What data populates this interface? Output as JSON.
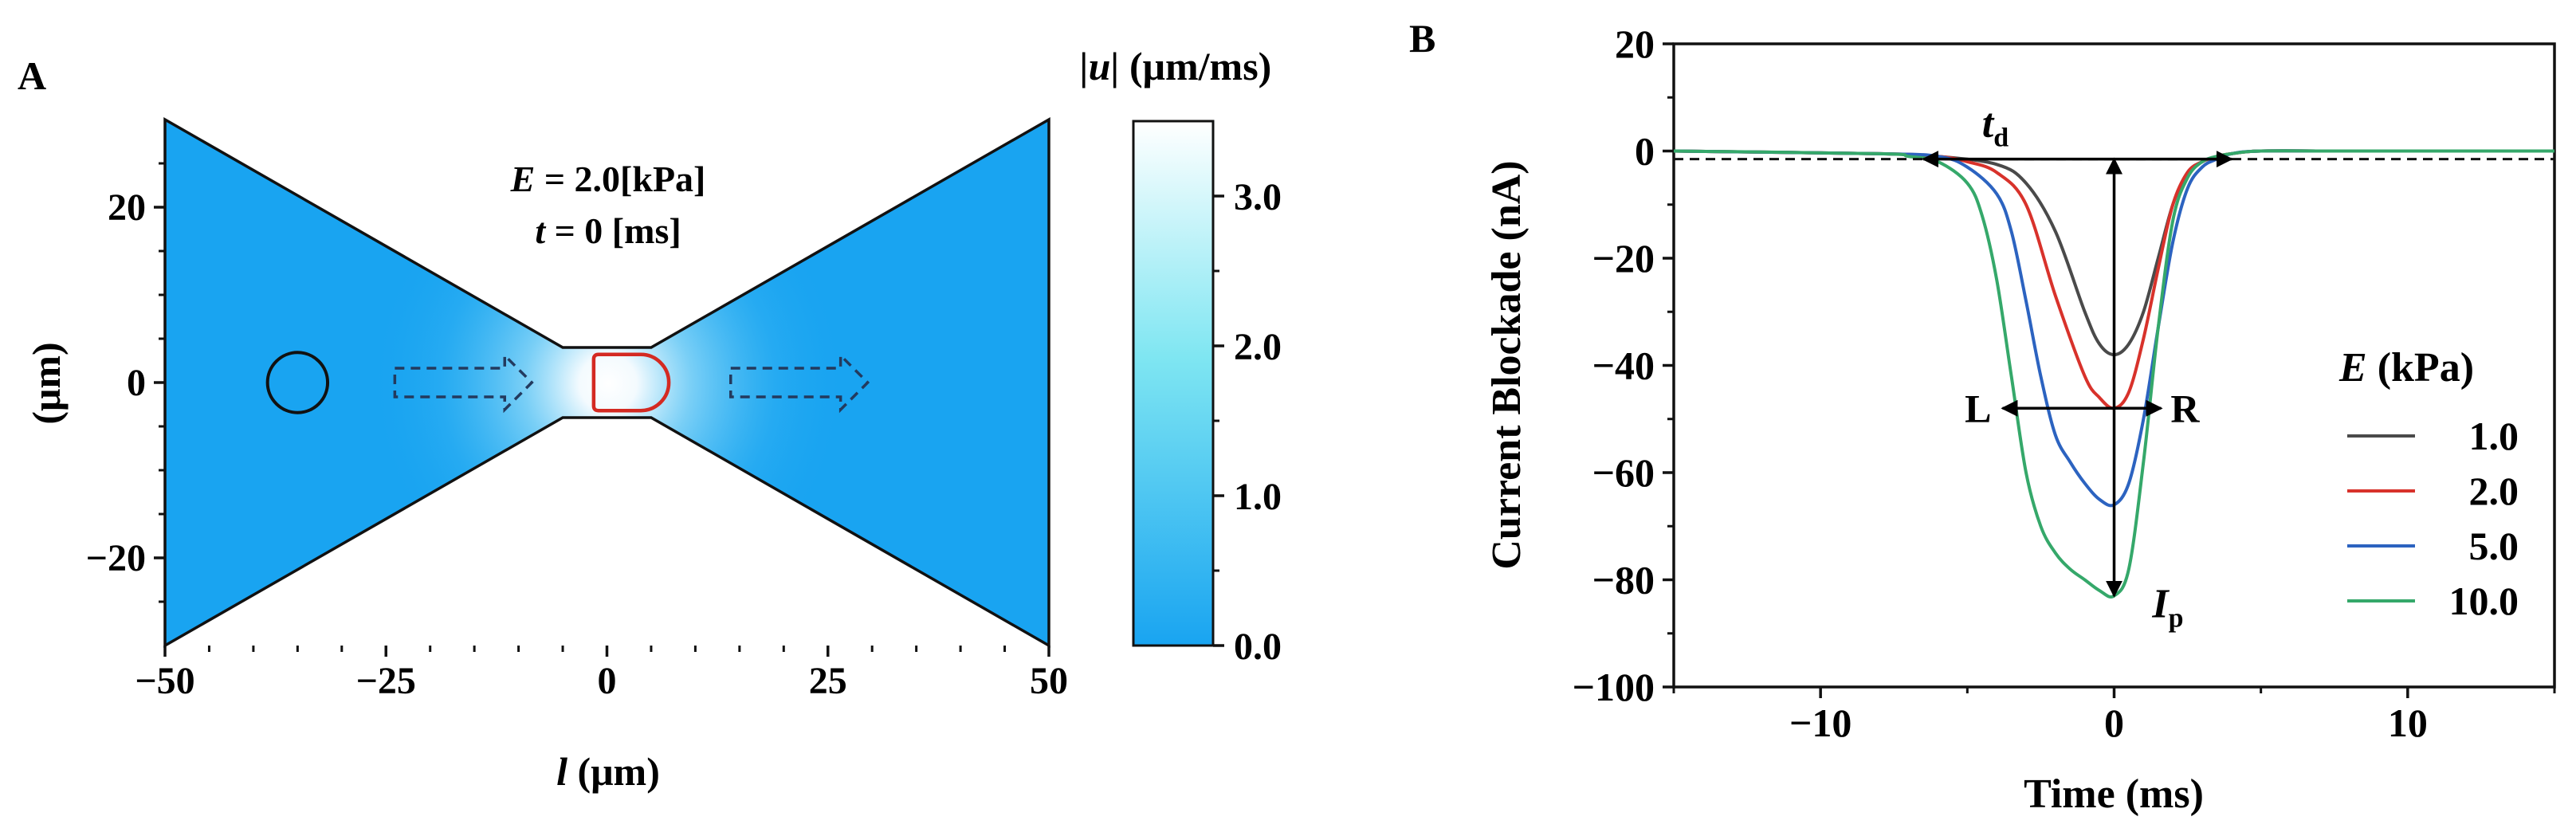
{
  "panels": {
    "a": {
      "label": "A"
    },
    "b": {
      "label": "B"
    }
  },
  "chart_data": [
    {
      "type": "heatmap",
      "panel": "A",
      "annotation": {
        "line1_var": "E",
        "line1_val": " = 2.0[kPa]",
        "line2_var": "t",
        "line2_val": " = 0 [ms]"
      },
      "xlabel": {
        "var": "l",
        "unit": " (μm)"
      },
      "ylabel": "(μm)",
      "xlim": [
        -50,
        50
      ],
      "ylim": [
        -30,
        30
      ],
      "xticks": [
        -50,
        -25,
        0,
        25,
        50
      ],
      "xtick_labels": [
        "−50",
        "−25",
        "0",
        "25",
        "50"
      ],
      "yticks": [
        -20,
        0,
        20
      ],
      "ytick_labels": [
        "−20",
        "0",
        "20"
      ],
      "geometry": {
        "inlet_half_height": 30,
        "pore_half_length": 5,
        "pore_half_height": 4,
        "cell_before": {
          "x": -35,
          "y": 0,
          "r": 3.4
        },
        "cell_in_pore": {
          "x_left": -1.5,
          "x_right": 7,
          "half_height": 3.2
        },
        "flow_arrows": [
          {
            "x0": -24,
            "x1": -8.5
          },
          {
            "x0": 14,
            "x1": 29.5
          }
        ]
      },
      "colorbar": {
        "title_var": "|u|",
        "title_unit": " (μm/ms)",
        "range": [
          0,
          3.5
        ],
        "ticks": [
          0,
          1,
          2,
          3
        ],
        "tick_labels": [
          "0.0",
          "1.0",
          "2.0",
          "3.0"
        ],
        "color_low": "#19a4f1",
        "color_mid": "#7fe6f2",
        "color_high": "#ffffff"
      },
      "colors": {
        "field": "#19a4f1",
        "outline": "#111111",
        "cell_deformed": "#d42a22",
        "arrow": "#233a5e"
      }
    },
    {
      "type": "line",
      "panel": "B",
      "xlabel": "Time (ms)",
      "ylabel": "Current  Blockade (nA)",
      "xlim": [
        -15,
        15
      ],
      "ylim": [
        -100,
        20
      ],
      "xticks": [
        -10,
        0,
        10
      ],
      "xtick_labels": [
        "−10",
        "0",
        "10"
      ],
      "yticks": [
        20,
        0,
        -20,
        -40,
        -60,
        -80,
        -100
      ],
      "ytick_labels": [
        "20",
        "0",
        "−20",
        "−40",
        "−60",
        "−80",
        "−100"
      ],
      "baseline": -1.5,
      "legend": {
        "title_var": "E",
        "title_unit": "  (kPa)",
        "placement": "right"
      },
      "series": [
        {
          "name": "1.0",
          "color": "#4a4a4a",
          "x": [
            -15,
            -8,
            -6,
            -4,
            -3,
            -2,
            -1,
            -0.5,
            0,
            0.5,
            1,
            1.5,
            2,
            2.5,
            3,
            3.5,
            4,
            5,
            8,
            15
          ],
          "y": [
            0,
            -0.5,
            -1,
            -2.5,
            -6,
            -15,
            -30,
            -36,
            -38,
            -36,
            -30,
            -20,
            -10,
            -4,
            -2,
            -1,
            -0.5,
            0,
            0,
            0
          ]
        },
        {
          "name": "2.0",
          "color": "#d8322b",
          "x": [
            -15,
            -8,
            -6,
            -5,
            -4,
            -3,
            -2,
            -1,
            -0.5,
            0,
            0.5,
            1,
            1.5,
            2,
            2.5,
            3,
            3.5,
            4,
            5,
            8,
            15
          ],
          "y": [
            0,
            -0.5,
            -1,
            -2,
            -4,
            -10,
            -27,
            -42,
            -46,
            -48,
            -45,
            -35,
            -22,
            -10,
            -4,
            -2,
            -1,
            -0.5,
            0,
            0,
            0
          ]
        },
        {
          "name": "5.0",
          "color": "#2c63c0",
          "x": [
            -15,
            -8,
            -6,
            -5,
            -4,
            -3.5,
            -3,
            -2.5,
            -2,
            -1.5,
            -1,
            -0.5,
            0,
            0.5,
            1,
            1.5,
            2,
            2.5,
            3,
            3.5,
            4,
            5,
            8,
            15
          ],
          "y": [
            0,
            -0.5,
            -1,
            -3,
            -8,
            -15,
            -28,
            -42,
            -53,
            -58,
            -62,
            -65,
            -66,
            -62,
            -50,
            -33,
            -17,
            -7,
            -3,
            -1.5,
            -0.5,
            0,
            0,
            0
          ]
        },
        {
          "name": "10.0",
          "color": "#35a86a",
          "x": [
            -15,
            -8,
            -7,
            -6,
            -5,
            -4.5,
            -4,
            -3.5,
            -3,
            -2.5,
            -2,
            -1.5,
            -1,
            -0.5,
            0,
            0.5,
            1,
            1.5,
            2,
            2.5,
            3,
            3.5,
            4,
            5,
            8,
            15
          ],
          "y": [
            0,
            -0.5,
            -1,
            -2,
            -6,
            -12,
            -24,
            -42,
            -60,
            -70,
            -75,
            -78,
            -80,
            -82,
            -83,
            -78,
            -58,
            -33,
            -13,
            -5,
            -2,
            -1,
            -0.5,
            0,
            0,
            0
          ]
        }
      ],
      "annotations": {
        "td": {
          "var": "t",
          "sub": "d",
          "from": -6.5,
          "to": 4
        },
        "ip": {
          "var": "I",
          "sub": "p",
          "x": 0,
          "from": -1.5,
          "to": -83
        },
        "L_label": "L",
        "R_label": "R",
        "lr_arrow": {
          "y": -48,
          "from": -3.8,
          "to": 1.6
        }
      }
    }
  ]
}
